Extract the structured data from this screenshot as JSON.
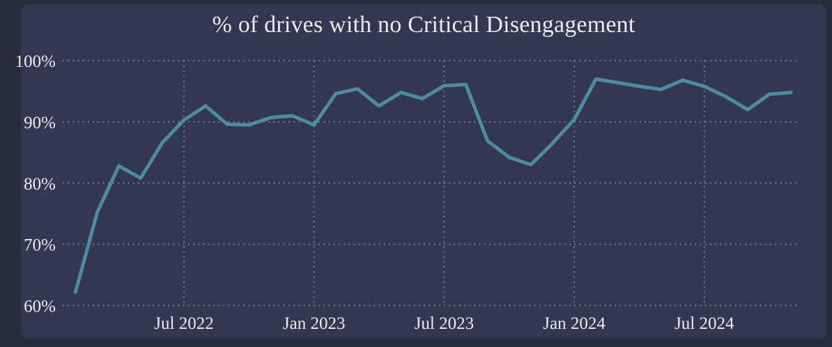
{
  "panel": {
    "title": "% of drives with no Critical Disengagement"
  },
  "colors": {
    "outer_bg": "#272b3a",
    "panel_bg": "#333750",
    "line": "#4d8ca0",
    "grid": "#a6abbd",
    "text": "#e9ebf2"
  },
  "chart_data": {
    "type": "line",
    "title": "% of drives with no Critical Disengagement",
    "x": [
      "Feb 2022",
      "Mar 2022",
      "Apr 2022",
      "May 2022",
      "Jun 2022",
      "Jul 2022",
      "Aug 2022",
      "Sep 2022",
      "Oct 2022",
      "Nov 2022",
      "Dec 2022",
      "Jan 2023",
      "Feb 2023",
      "Mar 2023",
      "Apr 2023",
      "May 2023",
      "Jun 2023",
      "Jul 2023",
      "Aug 2023",
      "Sep 2023",
      "Oct 2023",
      "Nov 2023",
      "Dec 2023",
      "Jan 2024",
      "Feb 2024",
      "Mar 2024",
      "Apr 2024",
      "May 2024",
      "Jun 2024",
      "Jul 2024",
      "Aug 2024",
      "Sep 2024",
      "Oct 2024",
      "Nov 2024"
    ],
    "series": [
      {
        "name": "% of drives with no critical disengagement",
        "values": [
          62.2,
          75.2,
          82.8,
          80.8,
          86.6,
          90.3,
          92.6,
          89.6,
          89.5,
          90.7,
          91.0,
          89.5,
          94.6,
          95.4,
          92.6,
          94.8,
          93.8,
          95.9,
          96.1,
          86.9,
          84.2,
          83.0,
          86.5,
          90.4,
          97.0,
          96.4,
          95.8,
          95.3,
          96.8,
          95.8,
          94.1,
          92.0,
          94.5,
          94.8
        ]
      }
    ],
    "xticks": [
      {
        "label": "Jul 2022",
        "index": 5
      },
      {
        "label": "Jan 2023",
        "index": 11
      },
      {
        "label": "Jul 2023",
        "index": 17
      },
      {
        "label": "Jan 2024",
        "index": 23
      },
      {
        "label": "Jul 2024",
        "index": 29
      }
    ],
    "yticks": [
      {
        "label": "100%",
        "value": 100
      },
      {
        "label": "90%",
        "value": 90
      },
      {
        "label": "80%",
        "value": 80
      },
      {
        "label": "70%",
        "value": 70
      },
      {
        "label": "60%",
        "value": 60
      }
    ],
    "ylim": [
      60,
      100
    ],
    "xlabel": "",
    "ylabel": "",
    "grid": "dotted",
    "legend": "none"
  }
}
